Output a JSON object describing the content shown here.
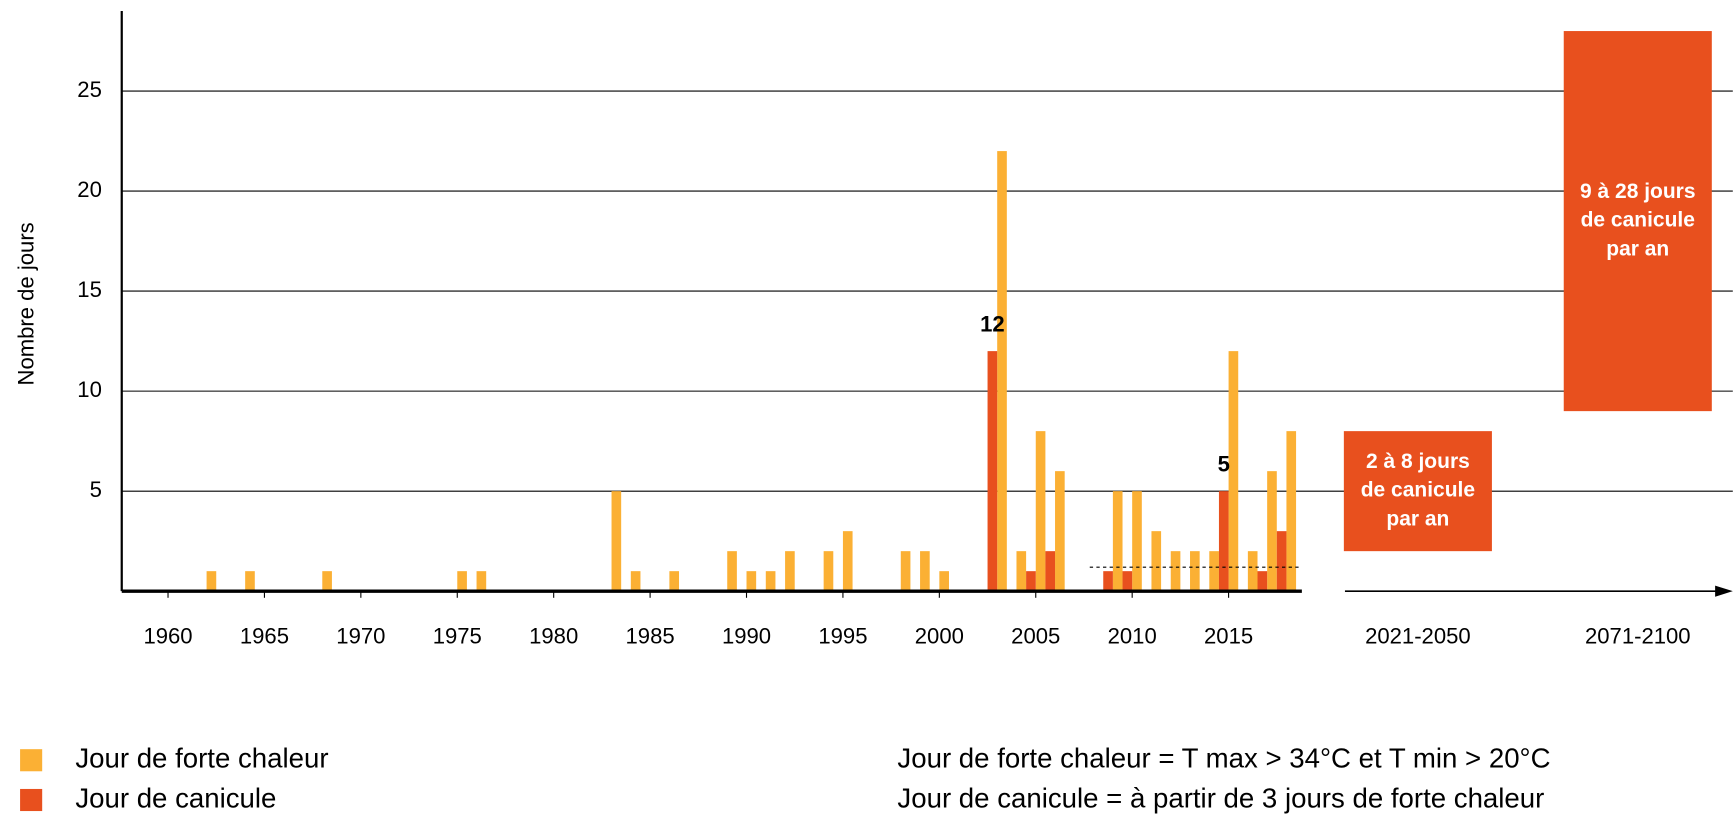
{
  "chart_data": {
    "type": "bar",
    "y_label": "Nombre de jours",
    "x": [
      1962,
      1964,
      1968,
      1975,
      1976,
      1983,
      1984,
      1986,
      1989,
      1990,
      1991,
      1992,
      1994,
      1995,
      1998,
      1999,
      2000,
      2003,
      2004,
      2005,
      2006,
      2009,
      2010,
      2011,
      2012,
      2013,
      2014,
      2015,
      2016,
      2017,
      2018
    ],
    "series": [
      {
        "name": "Jour de forte chaleur",
        "color": "#fbb034",
        "values": [
          1,
          1,
          1,
          1,
          1,
          5,
          1,
          1,
          2,
          1,
          1,
          2,
          2,
          3,
          2,
          2,
          1,
          22,
          2,
          8,
          6,
          5,
          5,
          3,
          2,
          2,
          2,
          12,
          2,
          6,
          8
        ]
      },
      {
        "name": "Jour de canicule",
        "color": "#e8501e",
        "values": [
          0,
          0,
          0,
          0,
          0,
          0,
          0,
          0,
          0,
          0,
          0,
          0,
          0,
          0,
          0,
          0,
          0,
          12,
          0,
          1,
          2,
          1,
          1,
          0,
          0,
          0,
          0,
          5,
          0,
          1,
          3
        ]
      }
    ],
    "data_labels_at": [
      2003,
      2015
    ],
    "reference_line": {
      "x": [
        2007.8,
        2018.8
      ],
      "y": 1.2
    },
    "xlim": [
      1957.6,
      2018.8
    ],
    "xticks": [
      1960,
      1965,
      1970,
      1975,
      1980,
      1985,
      1990,
      1995,
      2000,
      2005,
      2010,
      2015
    ],
    "ylim": [
      0,
      29
    ],
    "yticks": [
      5,
      10,
      15,
      20,
      25
    ],
    "grid": true,
    "projections": [
      {
        "period": "2021-2050",
        "low": 2,
        "high": 8,
        "color": "#e8501e",
        "text": [
          "2 à 8 jours",
          "de canicule",
          "par an"
        ]
      },
      {
        "period": "2071-2100",
        "low": 9,
        "high": 28,
        "color": "#e8501e",
        "text": [
          "9 à 28 jours",
          "de canicule",
          "par an"
        ]
      }
    ],
    "notes": [
      "Jour de forte chaleur = T max > 34°C et T min > 20°C",
      "Jour de canicule = à partir de 3 jours de forte chaleur"
    ]
  }
}
